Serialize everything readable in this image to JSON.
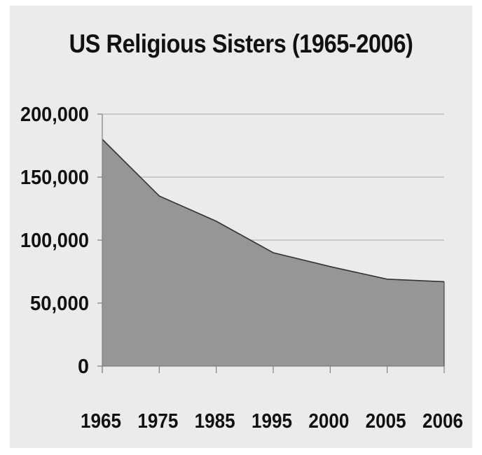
{
  "chart_data": {
    "type": "area",
    "title": "US Religious Sisters (1965-2006)",
    "xlabel": "",
    "ylabel": "",
    "categories": [
      "1965",
      "1975",
      "1985",
      "1995",
      "2000",
      "2005",
      "2006"
    ],
    "series": [
      {
        "values": [
          180000,
          135000,
          115000,
          90000,
          79000,
          69000,
          67000
        ]
      }
    ],
    "ylim": [
      0,
      200000
    ],
    "yticks": [
      "0",
      "50,000",
      "100,000",
      "150,000",
      "200,000"
    ],
    "grid": true,
    "legend": "none",
    "colors": {
      "area": "#969696",
      "line": "#333333",
      "grid": "#b5b5b5",
      "axis": "#808080"
    }
  }
}
